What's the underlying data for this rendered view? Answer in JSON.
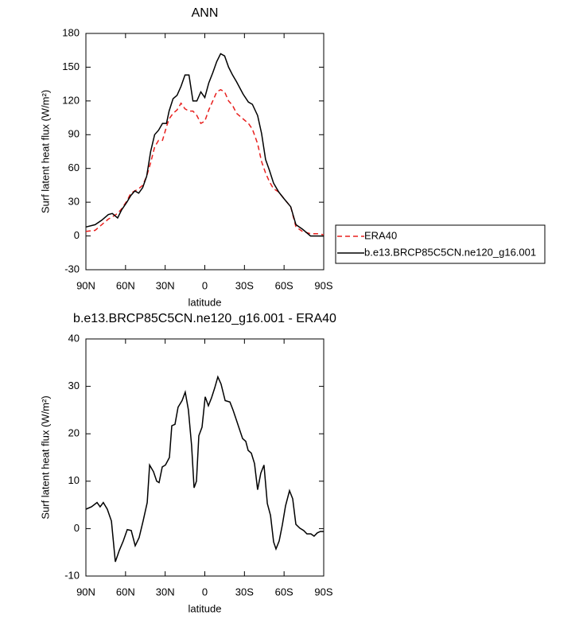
{
  "chart_data": [
    {
      "type": "line",
      "title": "ANN",
      "xlabel": "latitude",
      "ylabel": "Surf latent heat flux (W/m²)",
      "x": [
        90,
        83,
        78,
        73,
        70,
        66,
        63,
        59,
        56,
        53,
        50,
        47,
        44,
        41,
        38,
        35,
        32,
        29,
        27,
        24,
        21,
        18,
        15,
        12,
        9,
        6,
        3,
        0,
        -3,
        -6,
        -9,
        -12,
        -15,
        -18,
        -21,
        -24,
        -29,
        -33,
        -36,
        -40,
        -43,
        -46,
        -49,
        -52,
        -56,
        -60,
        -65,
        -69,
        -74,
        -80,
        -86,
        -90
      ],
      "series": [
        {
          "name": "ERA40",
          "color": "#e8201e",
          "line_style": "dashed",
          "values": [
            4,
            5,
            10,
            15,
            17,
            20,
            24,
            31,
            38,
            40,
            42,
            45,
            53,
            65,
            79,
            85,
            85,
            97,
            104,
            109,
            112,
            118,
            113,
            111,
            111,
            107,
            100,
            102,
            112,
            120,
            128,
            130,
            128,
            120,
            116,
            109,
            104,
            100,
            95,
            82,
            66,
            56,
            48,
            42,
            39,
            33,
            26,
            8,
            4,
            2,
            2,
            1
          ]
        },
        {
          "name": "b.e13.BRCP85C5CN.ne120_g16.001",
          "color": "#000000",
          "line_style": "solid",
          "values": [
            8,
            10,
            14,
            19,
            20,
            16,
            23,
            30,
            36,
            40,
            38,
            43,
            53,
            75,
            90,
            94,
            100,
            100,
            111,
            122,
            125,
            133,
            143,
            143,
            120,
            120,
            128,
            123,
            136,
            145,
            155,
            162,
            160,
            150,
            143,
            137,
            126,
            119,
            117,
            107,
            91,
            68,
            58,
            47,
            39,
            33,
            26,
            10,
            6,
            0,
            0,
            0
          ]
        }
      ],
      "xlim": [
        90,
        -90
      ],
      "xticks": [
        {
          "value": 90,
          "label": "90N"
        },
        {
          "value": 60,
          "label": "60N"
        },
        {
          "value": 30,
          "label": "30N"
        },
        0,
        {
          "value": -30,
          "label": "30S"
        },
        {
          "value": -60,
          "label": "60S"
        },
        {
          "value": -90,
          "label": "90S"
        }
      ],
      "ylim": [
        -30,
        180
      ],
      "yticks": [
        -30,
        0,
        30,
        60,
        90,
        120,
        150,
        180
      ],
      "legend": "right"
    },
    {
      "type": "line",
      "title": "b.e13.BRCP85C5CN.ne120_g16.001 - ERA40",
      "xlabel": "latitude",
      "ylabel": "Surf latent heat flux (W/m²)",
      "x": [
        90,
        85.8,
        81.6,
        79.2,
        76.8,
        73.8,
        70.7,
        67.7,
        64.7,
        61.7,
        58.7,
        55.7,
        52.7,
        49.7,
        46.7,
        43.6,
        41.8,
        38.8,
        36.4,
        34.6,
        32.2,
        29.8,
        26.8,
        25,
        22.6,
        20.2,
        17.2,
        14.8,
        12.4,
        10,
        8.1,
        6.3,
        4.5,
        2.1,
        -0.3,
        -2.7,
        -5.1,
        -7.5,
        -9.9,
        -12.3,
        -15.4,
        -19,
        -21.4,
        -23.8,
        -26.2,
        -28.6,
        -31,
        -32.8,
        -35.2,
        -37.6,
        -40,
        -42.4,
        -44.8,
        -47.3,
        -49.7,
        -52.1,
        -53.9,
        -56.3,
        -58.7,
        -61.1,
        -64.1,
        -66.5,
        -68.9,
        -71.9,
        -74.9,
        -77.3,
        -80.3,
        -82.7,
        -85.1,
        -87.5,
        -90
      ],
      "values": [
        4.1,
        4.6,
        5.5,
        4.6,
        5.5,
        4.1,
        1.6,
        -7,
        -4.6,
        -2.6,
        -0.2,
        -0.4,
        -3.6,
        -1.9,
        1.6,
        5.5,
        13.4,
        12,
        10,
        9.7,
        13,
        13.4,
        15,
        21.7,
        22,
        25.6,
        27,
        28.8,
        25,
        17.5,
        8.6,
        10,
        19.6,
        21.4,
        27.8,
        25.9,
        27.6,
        29.7,
        32,
        30.5,
        27,
        26.7,
        25,
        23,
        21,
        19,
        18.4,
        16.5,
        15.9,
        13.7,
        8.2,
        11.7,
        13.4,
        5.3,
        2.8,
        -2.8,
        -4.3,
        -2.6,
        0.8,
        4.8,
        8,
        6.3,
        0.9,
        0.1,
        -0.4,
        -1.1,
        -1.1,
        -1.6,
        -0.9,
        -0.6,
        -0.6
      ],
      "color": "#000000",
      "xlim": [
        90,
        -90
      ],
      "xticks": [
        {
          "value": 90,
          "label": "90N"
        },
        {
          "value": 60,
          "label": "60N"
        },
        {
          "value": 30,
          "label": "30N"
        },
        0,
        {
          "value": -30,
          "label": "30S"
        },
        {
          "value": -60,
          "label": "60S"
        },
        {
          "value": -90,
          "label": "90S"
        }
      ],
      "ylim": [
        -10,
        40
      ],
      "yticks": [
        -10,
        0,
        10,
        20,
        30,
        40
      ]
    }
  ]
}
